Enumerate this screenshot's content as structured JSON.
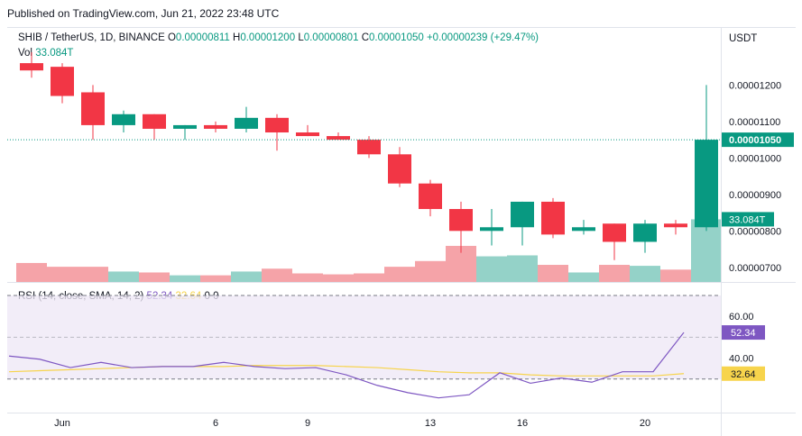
{
  "header": {
    "published": "Published on TradingView.com, Jun 21, 2022 23:48 UTC"
  },
  "legend": {
    "symbol": "SHIB / TetherUS, 1D, BINANCE",
    "open_label": "O",
    "open": "0.00000811",
    "high_label": "H",
    "high": "0.00001200",
    "low_label": "L",
    "low": "0.00000801",
    "close_label": "C",
    "close": "0.00001050",
    "change": "+0.00000239 (+29.47%)",
    "vol_label": "Vol",
    "vol": "33.084T"
  },
  "axis": {
    "unit": "USDT"
  },
  "rsi_legend": {
    "label": "RSI (14, close, SMA, 14, 2)",
    "rsi_value": "52.34",
    "sma_value": "32.64",
    "extra": "0 0"
  },
  "colors": {
    "up": "#089981",
    "down": "#f23645",
    "vol_up": "#94d2c8",
    "vol_down": "#f5a3a8",
    "rsi": "#7e57c2",
    "sma": "#f7d44c",
    "rsi_band": "#ede7f6"
  },
  "chart_data": [
    {
      "type": "candlestick",
      "x_labels": [
        "Jun",
        "6",
        "9",
        "13",
        "16",
        "20"
      ],
      "y_ticks": [
        "0.00000700",
        "0.00000800",
        "0.00000900",
        "0.00001000",
        "0.00001100",
        "0.00001200"
      ],
      "ylim": [
        6.6e-06,
        1.28e-05
      ],
      "last_price_label": "0.00001050",
      "last_volume_label": "33.084T",
      "candles": [
        {
          "o": 1.26e-05,
          "h": 1.29e-05,
          "l": 1.22e-05,
          "c": 1.24e-05
        },
        {
          "o": 1.25e-05,
          "h": 1.26e-05,
          "l": 1.15e-05,
          "c": 1.17e-05
        },
        {
          "o": 1.18e-05,
          "h": 1.2e-05,
          "l": 1.05e-05,
          "c": 1.09e-05
        },
        {
          "o": 1.09e-05,
          "h": 1.13e-05,
          "l": 1.07e-05,
          "c": 1.12e-05
        },
        {
          "o": 1.12e-05,
          "h": 1.12e-05,
          "l": 1.05e-05,
          "c": 1.08e-05
        },
        {
          "o": 1.08e-05,
          "h": 1.09e-05,
          "l": 1.05e-05,
          "c": 1.09e-05
        },
        {
          "o": 1.09e-05,
          "h": 1.1e-05,
          "l": 1.07e-05,
          "c": 1.08e-05
        },
        {
          "o": 1.08e-05,
          "h": 1.14e-05,
          "l": 1.07e-05,
          "c": 1.11e-05
        },
        {
          "o": 1.11e-05,
          "h": 1.12e-05,
          "l": 1.02e-05,
          "c": 1.07e-05
        },
        {
          "o": 1.07e-05,
          "h": 1.09e-05,
          "l": 1.06e-05,
          "c": 1.06e-05
        },
        {
          "o": 1.06e-05,
          "h": 1.07e-05,
          "l": 1.05e-05,
          "c": 1.05e-05
        },
        {
          "o": 1.05e-05,
          "h": 1.06e-05,
          "l": 1e-05,
          "c": 1.01e-05
        },
        {
          "o": 1.01e-05,
          "h": 1.03e-05,
          "l": 9.2e-06,
          "c": 9.3e-06
        },
        {
          "o": 9.3e-06,
          "h": 9.4e-06,
          "l": 8.4e-06,
          "c": 8.6e-06
        },
        {
          "o": 8.6e-06,
          "h": 8.8e-06,
          "l": 7.4e-06,
          "c": 8e-06
        },
        {
          "o": 8e-06,
          "h": 8.6e-06,
          "l": 7.6e-06,
          "c": 8.1e-06
        },
        {
          "o": 8.1e-06,
          "h": 8.8e-06,
          "l": 7.6e-06,
          "c": 8.8e-06
        },
        {
          "o": 8.8e-06,
          "h": 8.9e-06,
          "l": 7.8e-06,
          "c": 7.9e-06
        },
        {
          "o": 8e-06,
          "h": 8.3e-06,
          "l": 7.9e-06,
          "c": 8.1e-06
        },
        {
          "o": 8.2e-06,
          "h": 8.2e-06,
          "l": 7.2e-06,
          "c": 7.7e-06
        },
        {
          "o": 7.7e-06,
          "h": 8.3e-06,
          "l": 7.4e-06,
          "c": 8.2e-06
        },
        {
          "o": 8.2e-06,
          "h": 8.3e-06,
          "l": 7.9e-06,
          "c": 8.1e-06
        },
        {
          "o": 8.1e-06,
          "h": 1.2e-05,
          "l": 8e-06,
          "c": 1.05e-05
        }
      ],
      "volume_ylim": [
        0,
        50
      ],
      "volume": [
        10,
        8,
        8,
        5.5,
        5,
        3.5,
        3.5,
        5.5,
        7,
        4.5,
        4,
        4.5,
        8,
        11,
        19,
        13.5,
        14,
        9,
        5,
        9,
        8.5,
        6.5,
        33
      ]
    },
    {
      "type": "line",
      "title": "RSI (14, close, SMA, 14, 2)",
      "y_ticks": [
        "40.00",
        "60.00"
      ],
      "ylim": [
        20,
        70
      ],
      "band": [
        30,
        70
      ],
      "rsi_value_label": "52.34",
      "sma_value_label": "32.64",
      "series": [
        {
          "name": "RSI",
          "values": [
            41,
            39.5,
            35.5,
            38,
            35.5,
            36,
            36,
            38,
            36,
            35,
            35.5,
            32,
            27,
            23.5,
            21,
            22.5,
            33,
            28,
            30.5,
            28.5,
            33.5,
            33.5,
            52.3
          ]
        },
        {
          "name": "SMA",
          "values": [
            33.5,
            34,
            34.5,
            35,
            35.5,
            36,
            36,
            36,
            36.5,
            36.5,
            36.5,
            36,
            35.5,
            34.5,
            33.5,
            33,
            33,
            32,
            31.5,
            31.5,
            31.5,
            31.5,
            32.6
          ]
        }
      ]
    }
  ]
}
